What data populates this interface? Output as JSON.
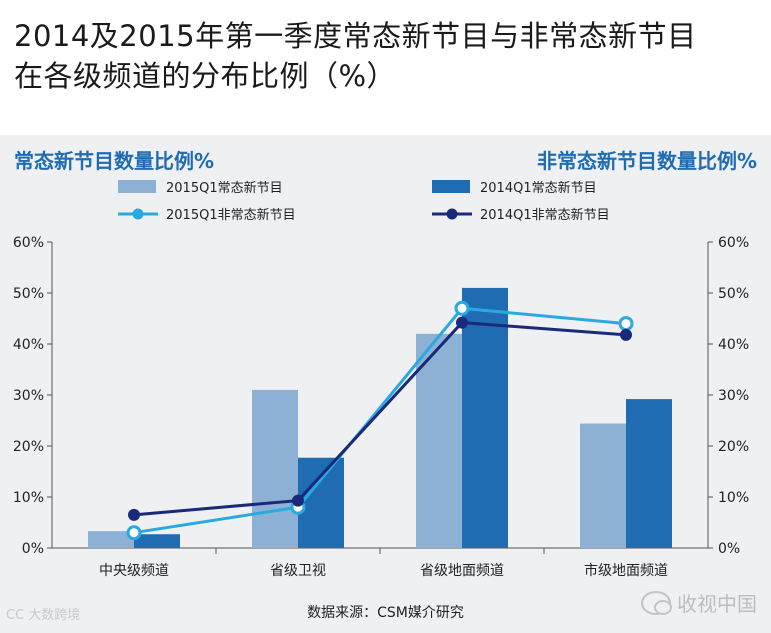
{
  "title_line1": "2014及2015年第一季度常态新节目与非常态新节目",
  "title_line2": "在各级频道的分布比例（%）",
  "left_axis_title": "常态新节目数量比例%",
  "right_axis_title": "非常态新节目数量比例%",
  "caption": "数据来源：CSM媒介研究",
  "watermark_left": "CC 大数跨境",
  "watermark_right": "收视中国",
  "colors": {
    "bar_2015": "#8db1d5",
    "bar_2014": "#1f6cb3",
    "line_2015": "#2aa9e0",
    "line_2014": "#1b2a78",
    "axis_title": "#1f6cb3"
  },
  "chart_data": {
    "type": "bar",
    "categories": [
      "中央级频道",
      "省级卫视",
      "省级地面频道",
      "市级地面频道"
    ],
    "ylim": [
      0,
      60
    ],
    "yticks": [
      0,
      10,
      20,
      30,
      40,
      50,
      60
    ],
    "tick_suffix": "%",
    "grid": false,
    "legend_position": "top",
    "series": [
      {
        "name": "2015Q1常态新节目",
        "kind": "bar",
        "values": [
          3.3,
          31,
          42,
          24.4
        ]
      },
      {
        "name": "2014Q1常态新节目",
        "kind": "bar",
        "values": [
          2.7,
          17.7,
          51,
          29.2
        ]
      },
      {
        "name": "2015Q1非常态新节目",
        "kind": "line",
        "values": [
          3,
          8,
          47,
          44
        ]
      },
      {
        "name": "2014Q1非常态新节目",
        "kind": "line",
        "values": [
          6.5,
          9.3,
          44.2,
          41.8
        ]
      }
    ]
  }
}
